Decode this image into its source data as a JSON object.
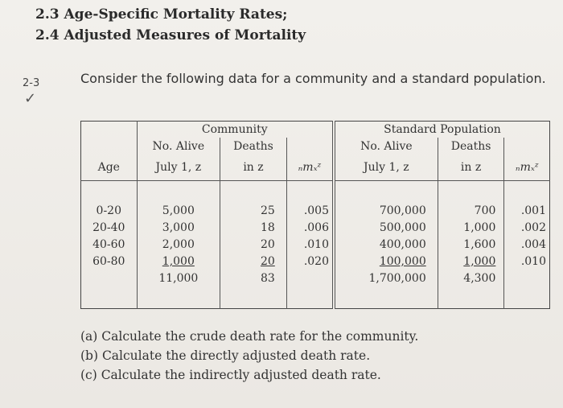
{
  "headings": [
    "2.3 Age-Specific Mortality Rates;",
    "2.4 Adjusted Measures of Mortality"
  ],
  "margin_note": "2-3",
  "margin_check": "✓",
  "intro": "Consider the following data for a community and a standard population.",
  "table": {
    "group_headers": {
      "community": "Community",
      "standard": "Standard Population"
    },
    "headers": {
      "age": "Age",
      "no_alive": "No. Alive",
      "july": "July 1, z",
      "deaths": "Deaths",
      "in_z": "in z",
      "rate": "ₙmₓᶻ"
    },
    "ages": [
      "0-20",
      "20-40",
      "40-60",
      "60-80"
    ],
    "community_alive": [
      "5,000",
      "3,000",
      "2,000",
      "1,000"
    ],
    "community_alive_total": "11,000",
    "community_deaths": [
      "25",
      "18",
      "20",
      "20"
    ],
    "community_deaths_total": "83",
    "community_rates": [
      ".005",
      ".006",
      ".010",
      ".020"
    ],
    "standard_alive": [
      "700,000",
      "500,000",
      "400,000",
      "100,000"
    ],
    "standard_alive_total": "1,700,000",
    "standard_deaths": [
      "700",
      "1,000",
      "1,600",
      "1,000"
    ],
    "standard_deaths_total": "4,300",
    "standard_rates": [
      ".001",
      ".002",
      ".004",
      ".010"
    ]
  },
  "questions": [
    "(a) Calculate the crude death rate for the community.",
    "(b) Calculate the directly adjusted death rate.",
    "(c) Calculate the indirectly adjusted death rate."
  ]
}
